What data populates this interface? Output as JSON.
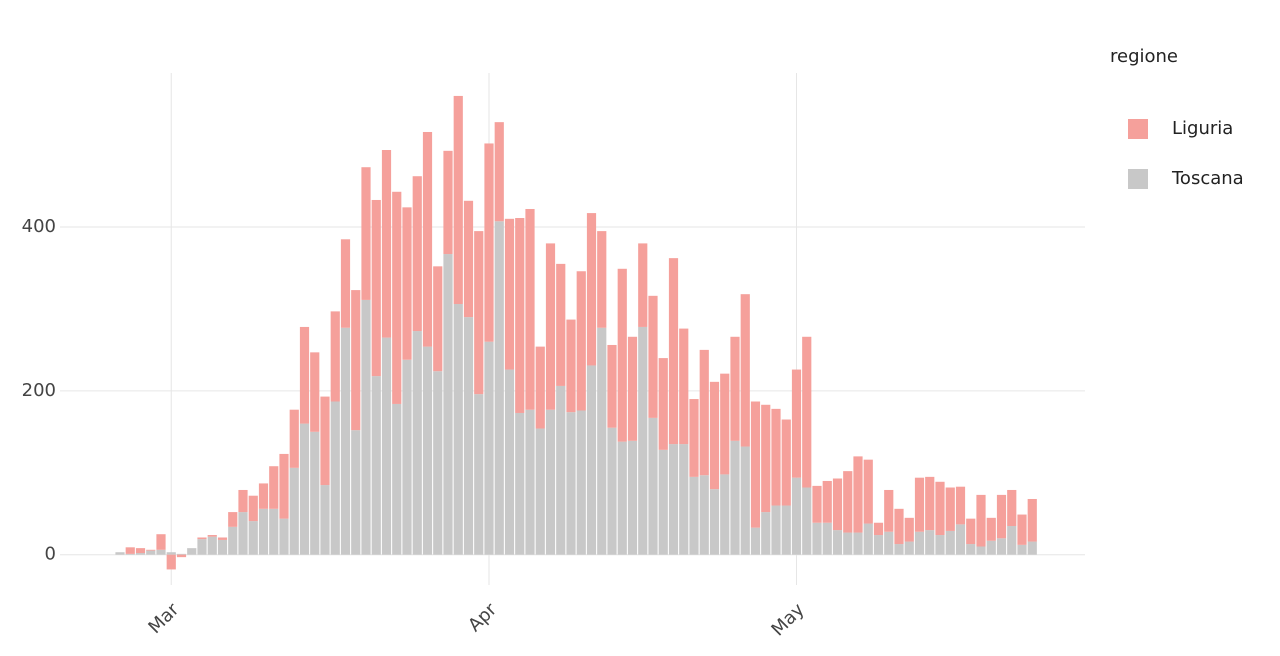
{
  "chart_data": {
    "type": "bar",
    "stacked": true,
    "legend_title": "regione",
    "legend_position": "right",
    "categories": [
      null,
      null,
      null,
      null,
      null,
      "Mar",
      null,
      null,
      null,
      null,
      null,
      null,
      null,
      null,
      null,
      null,
      null,
      null,
      null,
      null,
      null,
      null,
      null,
      null,
      null,
      null,
      null,
      null,
      null,
      null,
      null,
      null,
      null,
      null,
      null,
      null,
      "Apr",
      null,
      null,
      null,
      null,
      null,
      null,
      null,
      null,
      null,
      null,
      null,
      null,
      null,
      null,
      null,
      null,
      null,
      null,
      null,
      null,
      null,
      null,
      null,
      null,
      null,
      null,
      null,
      null,
      null,
      "May",
      null,
      null,
      null,
      null,
      null,
      null,
      null,
      null,
      null,
      null,
      null,
      null,
      null,
      null,
      null,
      null,
      null,
      null,
      null,
      null,
      null,
      null,
      null
    ],
    "series": [
      {
        "name": "Liguria",
        "color": "#f5a09b",
        "values": [
          0,
          8,
          6,
          1,
          19,
          -18,
          -3,
          0,
          2,
          2,
          3,
          18,
          27,
          31,
          31,
          52,
          79,
          71,
          118,
          97,
          108,
          110,
          108,
          171,
          162,
          215,
          229,
          259,
          186,
          189,
          262,
          128,
          126,
          254,
          142,
          199,
          242,
          121,
          184,
          238,
          245,
          100,
          203,
          149,
          113,
          170,
          186,
          118,
          101,
          211,
          127,
          102,
          149,
          112,
          227,
          141,
          95,
          153,
          131,
          123,
          127,
          186,
          154,
          131,
          118,
          105,
          132,
          184,
          45,
          51,
          63,
          75,
          93,
          78,
          15,
          51,
          43,
          29,
          66,
          65,
          65,
          53,
          46,
          31,
          63,
          28,
          53,
          44,
          37,
          52
        ]
      },
      {
        "name": "Toscana",
        "color": "#c8c8c8",
        "values": [
          3,
          1,
          2,
          5,
          6,
          3,
          1,
          8,
          19,
          22,
          18,
          34,
          52,
          41,
          56,
          56,
          44,
          106,
          160,
          150,
          85,
          187,
          277,
          152,
          311,
          218,
          265,
          184,
          238,
          273,
          254,
          224,
          367,
          306,
          290,
          196,
          260,
          407,
          226,
          173,
          177,
          154,
          177,
          206,
          174,
          176,
          231,
          277,
          155,
          138,
          139,
          278,
          167,
          128,
          135,
          135,
          95,
          97,
          80,
          98,
          139,
          132,
          33,
          52,
          60,
          60,
          94,
          82,
          39,
          39,
          30,
          27,
          27,
          38,
          24,
          28,
          13,
          16,
          28,
          30,
          24,
          29,
          37,
          13,
          10,
          17,
          20,
          35,
          12,
          16
        ]
      }
    ],
    "ylim": [
      -37,
      588
    ],
    "yticks": [
      0,
      200,
      400
    ],
    "grid": true
  }
}
